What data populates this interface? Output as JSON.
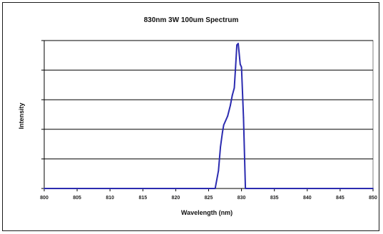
{
  "chart_data": {
    "type": "line",
    "title": "830nm 3W 100um Spectrum",
    "xlabel": "Wavelength (nm)",
    "ylabel": "Intensity",
    "xlim": [
      800,
      850
    ],
    "ylim": [
      0,
      1
    ],
    "x_ticks": [
      "800",
      "805",
      "810",
      "815",
      "820",
      "825",
      "830",
      "835",
      "840",
      "845",
      "850"
    ],
    "y_ticks": [
      0,
      0.2,
      0.4,
      0.6,
      0.8,
      1.0
    ],
    "y_tick_labels_shown": false,
    "grid": "horizontal",
    "legend": "none",
    "plot_area_color": "#ffffff",
    "series": [
      {
        "color": "#2b2bb0",
        "x": [
          800,
          826.0,
          826.5,
          826.8,
          827.1,
          827.3,
          827.5,
          827.9,
          828.3,
          828.6,
          828.9,
          829.1,
          829.3,
          829.5,
          829.8,
          830.0,
          830.3,
          830.6,
          850
        ],
        "y": [
          0.0,
          0.0,
          0.12,
          0.28,
          0.38,
          0.43,
          0.45,
          0.49,
          0.56,
          0.63,
          0.68,
          0.82,
          0.97,
          0.98,
          0.84,
          0.82,
          0.48,
          0.0,
          0.0
        ]
      }
    ]
  }
}
